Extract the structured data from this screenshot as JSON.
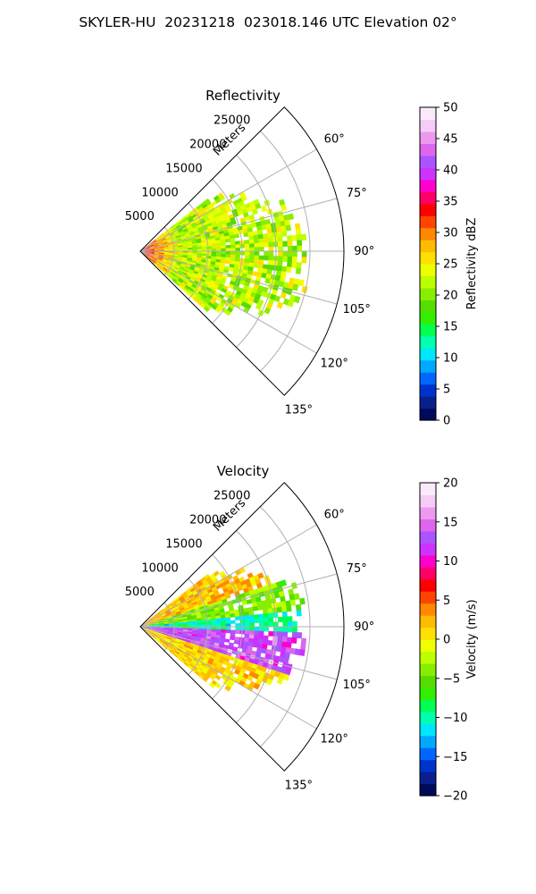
{
  "figure": {
    "title": "SKYLER-HU  20231218  023018.146 UTC Elevation 02°"
  },
  "chart_data": [
    {
      "type": "heatmap",
      "projection": "polar-sector",
      "title": "Reflectivity",
      "radial_label": "Meters",
      "radial_ticks": [
        5000,
        10000,
        15000,
        20000,
        25000
      ],
      "radial_tick_labels": [
        "5000",
        "10000",
        "15000",
        "20000",
        "25000"
      ],
      "radial_max": 30000,
      "azimuth_range": [
        45,
        135
      ],
      "azimuth_ticks": [
        60,
        75,
        90,
        105,
        120,
        135
      ],
      "azimuth_tick_labels": [
        "60°",
        "75°",
        "90°",
        "105°",
        "120°",
        "135°"
      ],
      "grid": true,
      "colorbar": {
        "label": "Reflectivity dBZ",
        "range": [
          0,
          50
        ],
        "ticks": [
          0,
          5,
          10,
          15,
          20,
          25,
          30,
          35,
          40,
          45,
          50
        ],
        "tick_labels": [
          "0",
          "5",
          "10",
          "15",
          "20",
          "25",
          "30",
          "35",
          "40",
          "45",
          "50"
        ],
        "colors": [
          "#000a5a",
          "#0a1e8c",
          "#0033cc",
          "#0066ff",
          "#00a8ff",
          "#00e6ff",
          "#00ffb0",
          "#00ff50",
          "#33ee00",
          "#55dd00",
          "#88ee00",
          "#bbff00",
          "#eeff00",
          "#ffe000",
          "#ffbb00",
          "#ff8800",
          "#ff4400",
          "#ff0000",
          "#ff0066",
          "#ff00cc",
          "#cc33ff",
          "#aa55ff",
          "#dd66ee",
          "#ee99f0",
          "#f6ccf6",
          "#fbeafb"
        ]
      },
      "echo_region": {
        "range_max": 25000,
        "azimuth_min": 52,
        "azimuth_max": 130,
        "typical_value": 22,
        "near_range_value": 34
      }
    },
    {
      "type": "heatmap",
      "projection": "polar-sector",
      "title": "Velocity",
      "radial_label": "Meters",
      "radial_ticks": [
        5000,
        10000,
        15000,
        20000,
        25000
      ],
      "radial_tick_labels": [
        "5000",
        "10000",
        "15000",
        "20000",
        "25000"
      ],
      "radial_max": 30000,
      "azimuth_range": [
        45,
        135
      ],
      "azimuth_ticks": [
        60,
        75,
        90,
        105,
        120,
        135
      ],
      "azimuth_tick_labels": [
        "60°",
        "75°",
        "90°",
        "105°",
        "120°",
        "135°"
      ],
      "grid": true,
      "colorbar": {
        "label": "Velocity (m/s)",
        "range": [
          -20,
          20
        ],
        "ticks": [
          -20,
          -15,
          -10,
          -5,
          0,
          5,
          10,
          15,
          20
        ],
        "tick_labels": [
          "−20",
          "−15",
          "−10",
          "−5",
          "0",
          "5",
          "10",
          "15",
          "20"
        ],
        "colors": [
          "#000a5a",
          "#0a1e8c",
          "#0033cc",
          "#0066ff",
          "#00a8ff",
          "#00e6ff",
          "#00ffb0",
          "#00ff50",
          "#33ee00",
          "#55dd00",
          "#88ee00",
          "#bbff00",
          "#eeff00",
          "#ffe000",
          "#ffbb00",
          "#ff8800",
          "#ff4400",
          "#ff0000",
          "#ff0066",
          "#ff00cc",
          "#cc33ff",
          "#aa55ff",
          "#dd66ee",
          "#ee99f0",
          "#f6ccf6",
          "#fbeafb"
        ]
      },
      "echo_region": {
        "range_max": 25000,
        "bands": [
          {
            "azimuth_min": 52,
            "azimuth_max": 72,
            "value": 2
          },
          {
            "azimuth_min": 72,
            "azimuth_max": 84,
            "value": -4
          },
          {
            "azimuth_min": 84,
            "azimuth_max": 92,
            "value": -10
          },
          {
            "azimuth_min": 92,
            "azimuth_max": 108,
            "value": 13
          },
          {
            "azimuth_min": 108,
            "azimuth_max": 130,
            "value": 1
          }
        ]
      }
    }
  ]
}
